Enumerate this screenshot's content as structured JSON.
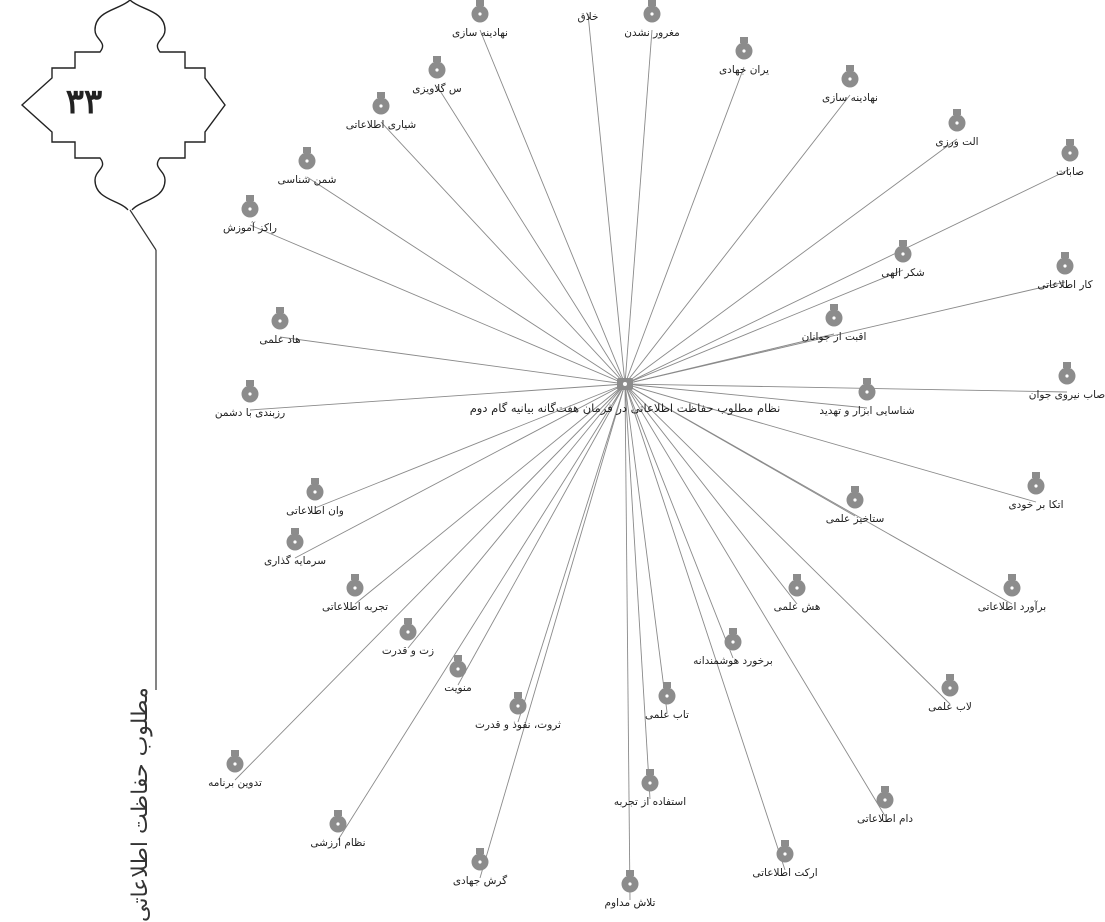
{
  "page": {
    "number": "۳۳",
    "side_title": "نظام مطلوب حفاظت اطلاعاتی"
  },
  "diagram": {
    "center_label": "نظام مطلوب حفاظت اطلاعاتی در فرمان هفت‌گانه بیانیه گام دوم",
    "colors": {
      "node": "#8c8c8c",
      "line": "#8a8a8a",
      "text": "#222222",
      "frame": "#222222"
    },
    "nodes": [
      "خلاق",
      "نهادینه سازی",
      "مغرور نشدن",
      "س گلاویزی",
      "یران جهادی",
      "شیاری اطلاعاتی",
      "نهادینه سازی",
      "شمن شناسی",
      "الت ورزی",
      "صابات",
      "راکز آموزش",
      "شکر الهی",
      "کار اطلاعاتی",
      "هاد علمی",
      "اقبت از جوانان",
      "صاب نیروی جوان",
      "رزبندی با دشمن",
      "شناسایی ابزار و تهدید",
      "وان اطلاعاتی",
      "اتکا بر خودی",
      "ستاخیز علمی",
      "سرمایه گذاری",
      "تجربه اطلاعاتی",
      "برآورد اطلاعاتی",
      "زت و قدرت",
      "هش علمی",
      "منویت",
      "برخورد هوشمندانه",
      "ثروت، نفوذ و قدرت",
      "تاب علمی",
      "لاب علمی",
      "تدوین برنامه",
      "استفاده از تجربه",
      "دام اطلاعاتی",
      "نظام ارزشی",
      "ارکت اطلاعاتی",
      "گرش جهادی",
      "تلاش مداوم"
    ]
  }
}
